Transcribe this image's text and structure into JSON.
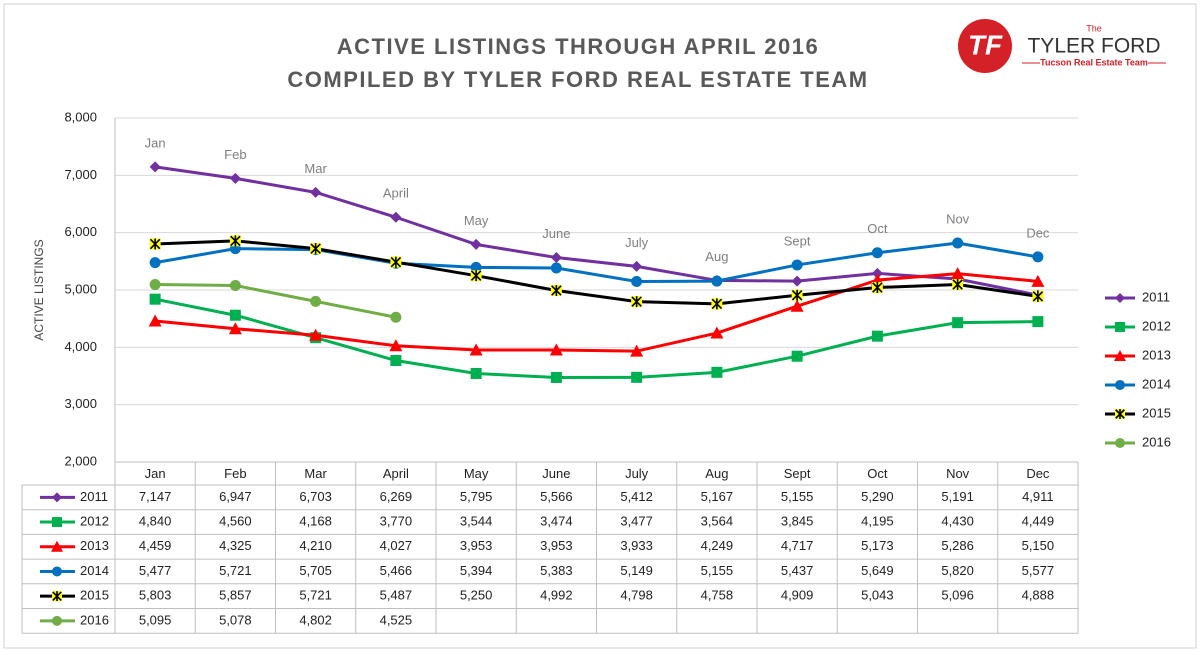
{
  "chart_data": {
    "type": "line",
    "title": "ACTIVE LISTINGS THROUGH APRIL 2016",
    "subtitle": "COMPILED BY TYLER FORD REAL ESTATE TEAM",
    "y_label": "ACTIVE LISTINGS",
    "logo": {
      "mark": "TF",
      "the": "The",
      "name": "TYLER FORD",
      "tagline": "Tucson Real Estate Team"
    },
    "categories": [
      "Jan",
      "Feb",
      "Mar",
      "April",
      "May",
      "June",
      "July",
      "Aug",
      "Sept",
      "Oct",
      "Nov",
      "Dec"
    ],
    "ylim": [
      2000,
      8000
    ],
    "yticks": [
      {
        "value": 2000,
        "label": "2,000"
      },
      {
        "value": 3000,
        "label": "3,000"
      },
      {
        "value": 4000,
        "label": "4,000"
      },
      {
        "value": 5000,
        "label": "5,000"
      },
      {
        "value": 6000,
        "label": "6,000"
      },
      {
        "value": 7000,
        "label": "7,000"
      },
      {
        "value": 8000,
        "label": "8,000"
      }
    ],
    "grid": true,
    "legend": "right",
    "series": [
      {
        "name": "2011",
        "color": "#7030a0",
        "marker": "diamond",
        "values": [
          7147,
          6947,
          6703,
          6269,
          5795,
          5566,
          5412,
          5167,
          5155,
          5290,
          5191,
          4911
        ],
        "value_labels": [
          "7,147",
          "6,947",
          "6,703",
          "6,269",
          "5,795",
          "5,566",
          "5,412",
          "5,167",
          "5,155",
          "5,290",
          "5,191",
          "4,911"
        ]
      },
      {
        "name": "2012",
        "color": "#00b050",
        "marker": "square",
        "values": [
          4840,
          4560,
          4168,
          3770,
          3544,
          3474,
          3477,
          3564,
          3845,
          4195,
          4430,
          4449
        ],
        "value_labels": [
          "4,840",
          "4,560",
          "4,168",
          "3,770",
          "3,544",
          "3,474",
          "3,477",
          "3,564",
          "3,845",
          "4,195",
          "4,430",
          "4,449"
        ]
      },
      {
        "name": "2013",
        "color": "#ff0000",
        "marker": "triangle",
        "values": [
          4459,
          4325,
          4210,
          4027,
          3953,
          3953,
          3933,
          4249,
          4717,
          5173,
          5286,
          5150
        ],
        "value_labels": [
          "4,459",
          "4,325",
          "4,210",
          "4,027",
          "3,953",
          "3,953",
          "3,933",
          "4,249",
          "4,717",
          "5,173",
          "5,286",
          "5,150"
        ]
      },
      {
        "name": "2014",
        "color": "#0070c0",
        "marker": "circle",
        "values": [
          5477,
          5721,
          5705,
          5466,
          5394,
          5383,
          5149,
          5155,
          5437,
          5649,
          5820,
          5577
        ],
        "value_labels": [
          "5,477",
          "5,721",
          "5,705",
          "5,466",
          "5,394",
          "5,383",
          "5,149",
          "5,155",
          "5,437",
          "5,649",
          "5,820",
          "5,577"
        ]
      },
      {
        "name": "2015",
        "color": "#000000",
        "marker": "star",
        "values": [
          5803,
          5857,
          5721,
          5487,
          5250,
          4992,
          4798,
          4758,
          4909,
          5043,
          5096,
          4888
        ],
        "value_labels": [
          "5,803",
          "5,857",
          "5,721",
          "5,487",
          "5,250",
          "4,992",
          "4,798",
          "4,758",
          "4,909",
          "5,043",
          "5,096",
          "4,888"
        ]
      },
      {
        "name": "2016",
        "color": "#70ad47",
        "marker": "circle",
        "values": [
          5095,
          5078,
          4802,
          4525,
          null,
          null,
          null,
          null,
          null,
          null,
          null,
          null
        ],
        "value_labels": [
          "5,095",
          "5,078",
          "4,802",
          "4,525",
          null,
          null,
          null,
          null,
          null,
          null,
          null,
          null
        ]
      }
    ]
  }
}
